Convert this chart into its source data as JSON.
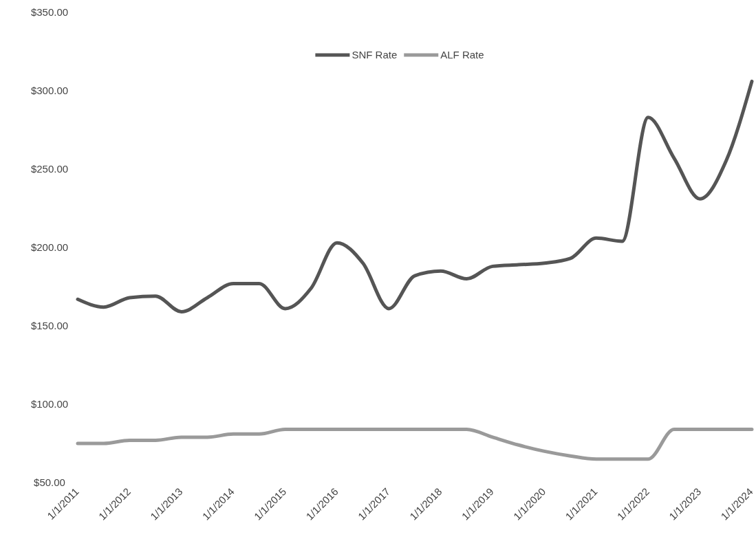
{
  "chart_data": {
    "type": "line",
    "categories": [
      "1/1/2011",
      null,
      "1/1/2012",
      null,
      "1/1/2013",
      null,
      "1/1/2014",
      null,
      "1/1/2015",
      null,
      "1/1/2016",
      null,
      "1/1/2017",
      null,
      "1/1/2018",
      null,
      "1/1/2019",
      null,
      "1/1/2020",
      null,
      "1/1/2021",
      null,
      "1/1/2022",
      null,
      "1/1/2023",
      null,
      "1/1/2024"
    ],
    "series": [
      {
        "name": "SNF Rate",
        "color": "#555555",
        "values": [
          167,
          162,
          168,
          169,
          159,
          168,
          177,
          177,
          161,
          174,
          203,
          190,
          161,
          182,
          185,
          180,
          188,
          189,
          190,
          193,
          206,
          204,
          283,
          257,
          231,
          255,
          306
        ]
      },
      {
        "name": "ALF Rate",
        "color": "#9a9a9a",
        "values": [
          75,
          75,
          77,
          77,
          79,
          79,
          81,
          81,
          84,
          84,
          84,
          84,
          84,
          84,
          84,
          84,
          79,
          74,
          70,
          67,
          65,
          65,
          65,
          84,
          84,
          84,
          84
        ]
      }
    ],
    "ylim": [
      50,
      350
    ],
    "yticks": [
      {
        "value": 50,
        "label": "$50.00"
      },
      {
        "value": 100,
        "label": "$100.00"
      },
      {
        "value": 150,
        "label": "$150.00"
      },
      {
        "value": 200,
        "label": "$200.00"
      },
      {
        "value": 250,
        "label": "$250.00"
      },
      {
        "value": 300,
        "label": "$300.00"
      },
      {
        "value": 350,
        "label": "$350.00"
      }
    ],
    "grid": false,
    "legend": "top",
    "marker": "none",
    "line_style": "solid"
  }
}
